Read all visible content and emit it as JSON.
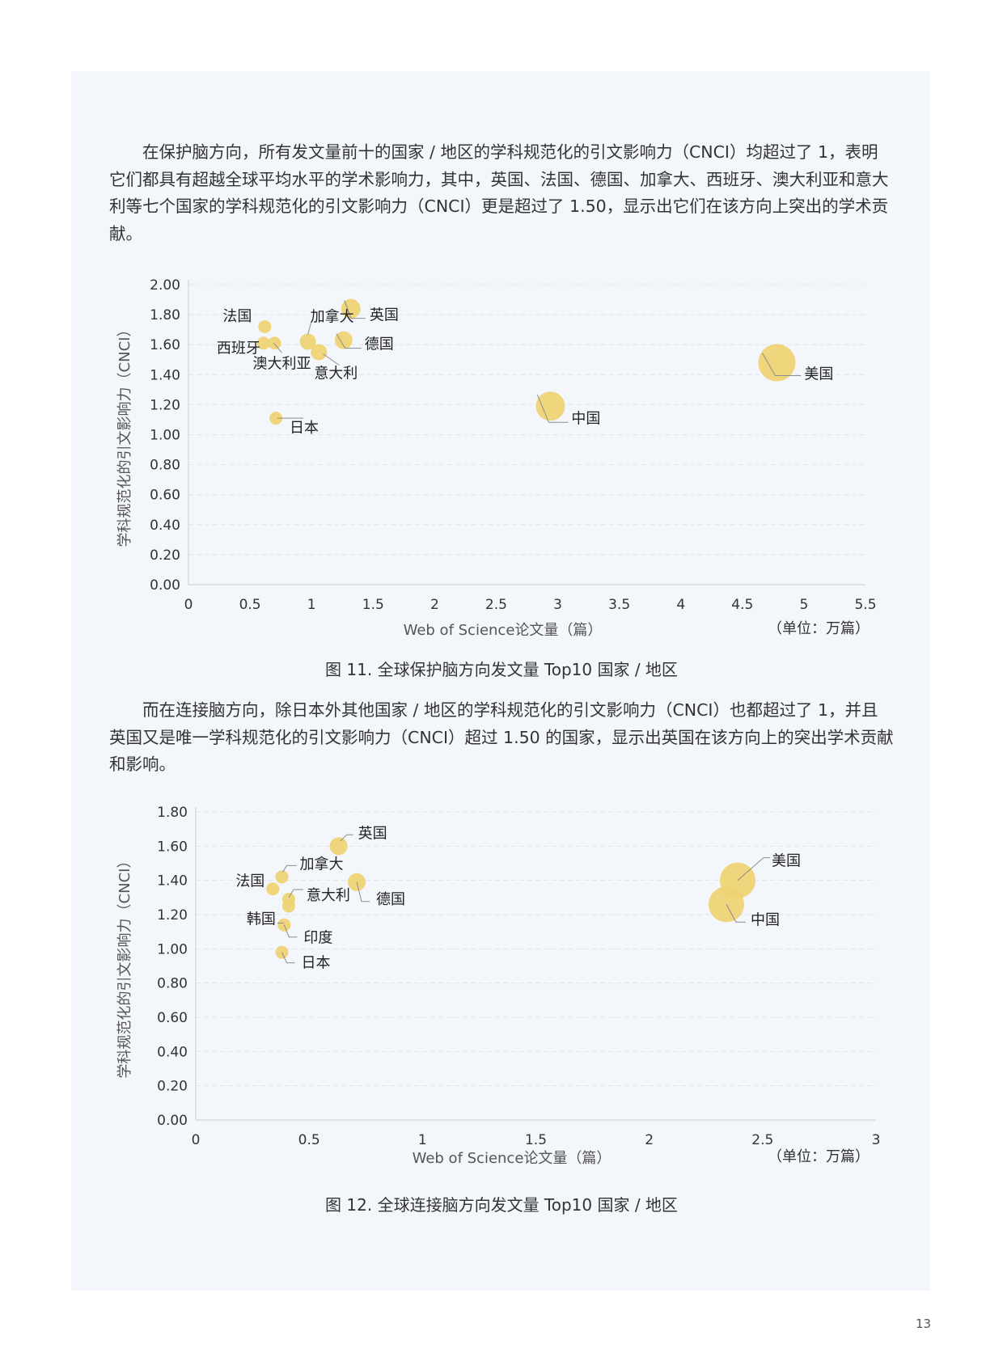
{
  "paragraphs": [
    "在保护脑方向，所有发文量前十的国家 / 地区的学科规范化的引文影响力（CNCI）均超过了 1，表明它们都具有超越全球平均水平的学术影响力，其中，英国、法国、德国、加拿大、西班牙、澳大利亚和意大利等七个国家的学科规范化的引文影响力（CNCI）更是超过了 1.50，显示出它们在该方向上突出的学术贡献。",
    "而在连接脑方向，除日本外其他国家 / 地区的学科规范化的引文影响力（CNCI）也都超过了 1，并且英国又是唯一学科规范化的引文影响力（CNCI）超过 1.50 的国家，显示出英国在该方向上的突出学术贡献和影响。"
  ],
  "captions": [
    "图 11. 全球保护脑方向发文量 Top10 国家 / 地区",
    "图 12. 全球连接脑方向发文量 Top10 国家 / 地区"
  ],
  "page_number": "13",
  "colors": {
    "bubble": "#efd170",
    "grid": "#e2e4e8",
    "axis": "#c9ccd2",
    "text": "#333333"
  },
  "chart_data": [
    {
      "type": "scatter",
      "xlabel": "Web of Science论文量（篇）",
      "ylabel": "学科规范化的引文影响力（CNCI）",
      "unit_note": "（单位：万篇）",
      "xlim": [
        0,
        5.5
      ],
      "ylim": [
        0,
        2.0
      ],
      "xticks": [
        "0",
        "0.5",
        "1",
        "1.5",
        "2",
        "2.5",
        "3",
        "3.5",
        "4",
        "4.5",
        "5",
        "5.5"
      ],
      "yticks": [
        "0.00",
        "0.20",
        "0.40",
        "0.60",
        "0.80",
        "1.00",
        "1.20",
        "1.40",
        "1.60",
        "1.80",
        "2.00"
      ],
      "grid": true,
      "points": [
        {
          "label": "美国",
          "x": 4.78,
          "y": 1.48
        },
        {
          "label": "中国",
          "x": 2.94,
          "y": 1.19
        },
        {
          "label": "英国",
          "x": 1.32,
          "y": 1.84
        },
        {
          "label": "德国",
          "x": 1.26,
          "y": 1.63
        },
        {
          "label": "意大利",
          "x": 1.06,
          "y": 1.55
        },
        {
          "label": "加拿大",
          "x": 0.97,
          "y": 1.62
        },
        {
          "label": "法国",
          "x": 0.62,
          "y": 1.72
        },
        {
          "label": "西班牙",
          "x": 0.61,
          "y": 1.61
        },
        {
          "label": "澳大利亚",
          "x": 0.7,
          "y": 1.61
        },
        {
          "label": "日本",
          "x": 0.71,
          "y": 1.11
        }
      ]
    },
    {
      "type": "scatter",
      "xlabel": "Web of Science论文量（篇）",
      "ylabel": "学科规范化的引文影响力（CNCI）",
      "unit_note": "（单位：万篇）",
      "xlim": [
        0,
        3
      ],
      "ylim": [
        0,
        1.8
      ],
      "xticks": [
        "0",
        "0.5",
        "1",
        "1.5",
        "2",
        "2.5",
        "3"
      ],
      "yticks": [
        "0.00",
        "0.20",
        "0.40",
        "0.60",
        "0.80",
        "1.00",
        "1.20",
        "1.40",
        "1.60",
        "1.80"
      ],
      "grid": true,
      "points": [
        {
          "label": "美国",
          "x": 2.39,
          "y": 1.4
        },
        {
          "label": "中国",
          "x": 2.34,
          "y": 1.26
        },
        {
          "label": "英国",
          "x": 0.63,
          "y": 1.6
        },
        {
          "label": "德国",
          "x": 0.71,
          "y": 1.39
        },
        {
          "label": "加拿大",
          "x": 0.38,
          "y": 1.42
        },
        {
          "label": "法国",
          "x": 0.34,
          "y": 1.35
        },
        {
          "label": "意大利",
          "x": 0.41,
          "y": 1.29
        },
        {
          "label": "韩国",
          "x": 0.41,
          "y": 1.25
        },
        {
          "label": "印度",
          "x": 0.39,
          "y": 1.14
        },
        {
          "label": "日本",
          "x": 0.38,
          "y": 0.98
        }
      ]
    }
  ]
}
